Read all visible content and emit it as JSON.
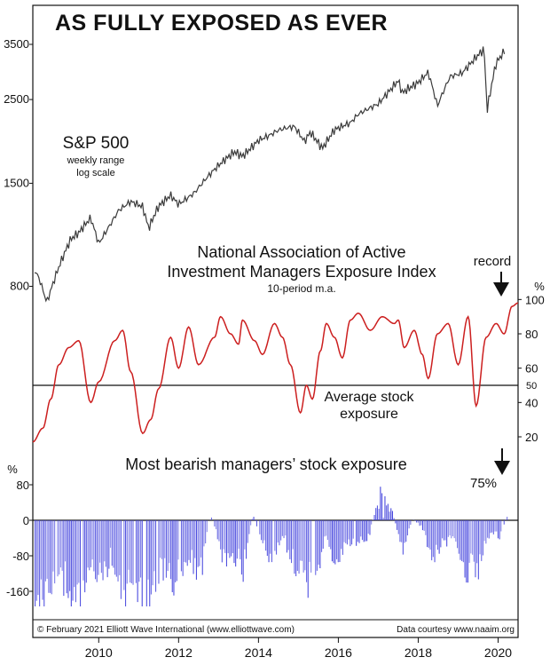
{
  "title": "AS FULLY EXPOSED AS EVER",
  "footer": {
    "copyright": "© February 2021 Elliott Wave International (www.elliottwave.com)",
    "courtesy": "Data courtesy www.naaim.org"
  },
  "colors": {
    "sp500": "#3a3a3a",
    "exposure": "#cc1f1f",
    "bearish": "#4444dd",
    "frame": "#111111"
  },
  "chart_data": [
    {
      "type": "line",
      "name": "sp500",
      "label": "S&P 500",
      "sublabel_1": "weekly range",
      "sublabel_2": "log scale",
      "y_scale": "log",
      "y_ticks": [
        800,
        1500,
        2500,
        3500
      ],
      "y_tick_labels": [
        "800",
        "1500",
        "2500",
        "3500"
      ],
      "ylim": [
        660,
        3900
      ],
      "xlim": [
        2008.85,
        2021.0
      ],
      "x": [
        2008.85,
        2009.0,
        2009.2,
        2009.5,
        2009.8,
        2010.0,
        2010.3,
        2010.5,
        2010.8,
        2011.0,
        2011.3,
        2011.6,
        2011.75,
        2012.0,
        2012.3,
        2012.5,
        2012.9,
        2013.2,
        2013.5,
        2013.9,
        2014.1,
        2014.5,
        2014.8,
        2015.0,
        2015.4,
        2015.65,
        2015.8,
        2016.1,
        2016.4,
        2016.8,
        2017.0,
        2017.5,
        2018.0,
        2018.1,
        2018.5,
        2018.75,
        2018.98,
        2019.3,
        2019.6,
        2019.95,
        2020.15,
        2020.22,
        2020.45,
        2020.7,
        2021.0
      ],
      "values": [
        900,
        850,
        730,
        900,
        1060,
        1100,
        1210,
        1040,
        1180,
        1280,
        1340,
        1290,
        1130,
        1300,
        1400,
        1330,
        1420,
        1540,
        1660,
        1820,
        1780,
        1960,
        2010,
        2060,
        2110,
        1940,
        2060,
        1870,
        2080,
        2150,
        2270,
        2450,
        2820,
        2610,
        2750,
        2930,
        2400,
        2900,
        2960,
        3230,
        3380,
        2300,
        3100,
        3400,
        3750
      ]
    },
    {
      "type": "line",
      "name": "exposure",
      "title_line_1": "National Association of Active",
      "title_line_2": "Investment Managers Exposure Index",
      "subtitle": "10-period m.a.",
      "unit": "%",
      "y_ticks": [
        20,
        40,
        60,
        80,
        100
      ],
      "y_tick_labels": [
        "20",
        "40",
        "60",
        "80",
        "100"
      ],
      "ylim": [
        10,
        108
      ],
      "average": 50,
      "average_value_label": "50",
      "average_line_1": "Average stock",
      "average_line_2": "exposure",
      "record_label": "record",
      "xlim": [
        2008.85,
        2021.0
      ],
      "x": [
        2008.85,
        2009.1,
        2009.3,
        2009.5,
        2009.75,
        2010.0,
        2010.3,
        2010.5,
        2010.9,
        2011.1,
        2011.3,
        2011.6,
        2011.8,
        2012.0,
        2012.3,
        2012.5,
        2012.75,
        2013.0,
        2013.4,
        2013.55,
        2013.8,
        2014.0,
        2014.1,
        2014.4,
        2014.6,
        2014.9,
        2015.1,
        2015.3,
        2015.55,
        2015.7,
        2015.85,
        2016.05,
        2016.2,
        2016.4,
        2016.6,
        2016.8,
        2017.0,
        2017.3,
        2017.6,
        2017.9,
        2018.0,
        2018.15,
        2018.4,
        2018.6,
        2018.75,
        2018.98,
        2019.25,
        2019.5,
        2019.75,
        2019.95,
        2020.2,
        2020.45,
        2020.65,
        2020.85,
        2021.0
      ],
      "values": [
        17,
        25,
        42,
        62,
        72,
        76,
        40,
        52,
        76,
        82,
        58,
        22,
        30,
        48,
        78,
        60,
        84,
        62,
        78,
        90,
        80,
        74,
        88,
        76,
        68,
        86,
        78,
        62,
        34,
        50,
        42,
        70,
        86,
        78,
        66,
        88,
        92,
        82,
        90,
        86,
        88,
        72,
        82,
        68,
        54,
        80,
        86,
        62,
        90,
        38,
        78,
        86,
        80,
        96,
        98
      ]
    },
    {
      "type": "bar",
      "name": "bearish",
      "title": "Most bearish managers’ stock exposure",
      "unit": "%",
      "annotation": "75%",
      "y_ticks": [
        80,
        0,
        -80,
        -160
      ],
      "y_tick_labels": [
        "80",
        "0",
        "-80",
        "-160"
      ],
      "ylim": [
        -200,
        95
      ],
      "xlim": [
        2008.85,
        2021.0
      ],
      "x": [
        2008.9,
        2009.4,
        2009.65,
        2009.95,
        2010.25,
        2010.5,
        2010.8,
        2011.1,
        2011.45,
        2011.75,
        2012.1,
        2012.4,
        2012.75,
        2013.05,
        2013.3,
        2013.6,
        2013.85,
        2014.1,
        2014.35,
        2014.6,
        2014.85,
        2015.1,
        2015.4,
        2015.65,
        2015.85,
        2016.15,
        2016.45,
        2016.7,
        2016.95,
        2017.25,
        2017.55,
        2017.85,
        2018.1,
        2018.35,
        2018.6,
        2018.85,
        2019.1,
        2019.4,
        2019.7,
        2020.0,
        2020.3,
        2020.55,
        2020.75,
        2020.9
      ],
      "values": [
        -200,
        -180,
        -150,
        -200,
        -125,
        -150,
        -100,
        -200,
        -160,
        -200,
        -125,
        -150,
        -100,
        -130,
        20,
        -100,
        -80,
        -125,
        15,
        -60,
        -100,
        -40,
        -120,
        -150,
        -160,
        -50,
        -100,
        -60,
        -50,
        -40,
        80,
        20,
        -75,
        5,
        -20,
        -100,
        -50,
        -60,
        -125,
        -120,
        -30,
        -40,
        30,
        75
      ]
    }
  ],
  "x_axis": {
    "ticks": [
      2010,
      2012,
      2014,
      2016,
      2018,
      2020
    ],
    "tick_labels": [
      "2010",
      "2012",
      "2014",
      "2016",
      "2018",
      "2020"
    ]
  }
}
